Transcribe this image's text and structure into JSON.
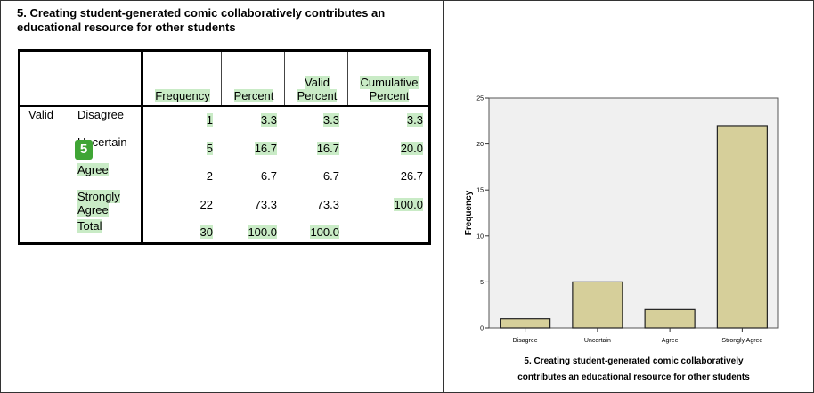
{
  "table": {
    "title": "5. Creating student-generated comic collaboratively contributes an educational resource for other students",
    "headers": [
      "Frequency",
      "Percent",
      "Valid Percent",
      "Cumulative Percent"
    ],
    "group_label": "Valid",
    "rows": [
      {
        "label": "Disagree",
        "frequency": "1",
        "percent": "3.3",
        "valid_percent": "3.3",
        "cumulative_percent": "3.3"
      },
      {
        "label": "Uncertain",
        "frequency": "5",
        "percent": "16.7",
        "valid_percent": "16.7",
        "cumulative_percent": "20.0"
      },
      {
        "label": "Agree",
        "frequency": "2",
        "percent": "6.7",
        "valid_percent": "6.7",
        "cumulative_percent": "26.7"
      },
      {
        "label": "Strongly Agree",
        "frequency": "22",
        "percent": "73.3",
        "valid_percent": "73.3",
        "cumulative_percent": "100.0"
      },
      {
        "label": "Total",
        "frequency": "30",
        "percent": "100.0",
        "valid_percent": "100.0",
        "cumulative_percent": ""
      }
    ]
  },
  "badge": "5",
  "chart_data": {
    "type": "bar",
    "categories": [
      "Disagree",
      "Uncertain",
      "Agree",
      "Strongly Agree"
    ],
    "values": [
      1,
      5,
      2,
      22
    ],
    "ylabel": "Frequency",
    "xlabel": "5. Creating student-generated comic collaboratively contributes an educational resource for other students",
    "xlabel_lines": [
      "5. Creating student-generated comic collaboratively",
      "contributes an educational resource for other students"
    ],
    "ylim": [
      0,
      25
    ],
    "yticks": [
      0,
      5,
      10,
      15,
      20,
      25
    ],
    "grid": false,
    "bar_color": "#d6cf9a",
    "plot_bg": "#f0f0f0"
  }
}
